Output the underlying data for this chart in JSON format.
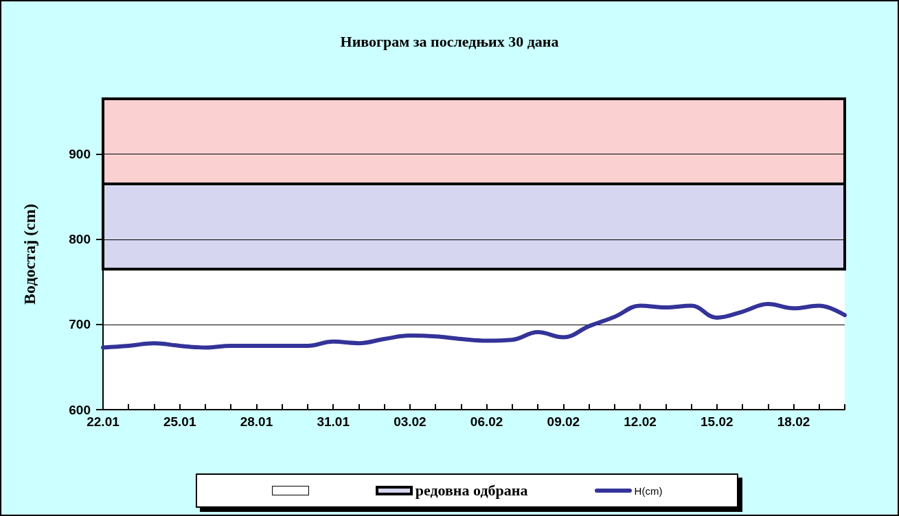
{
  "chart_data": {
    "type": "line",
    "title": "Нивограм за последњих 30 дана",
    "ylabel": "Водостај (cm)",
    "categories": [
      "22.01",
      null,
      null,
      "25.01",
      null,
      null,
      "28.01",
      null,
      null,
      "31.01",
      null,
      null,
      "03.02",
      null,
      null,
      "06.02",
      null,
      null,
      "09.02",
      null,
      null,
      "12.02",
      null,
      null,
      "15.02",
      null,
      null,
      "18.02",
      null,
      null
    ],
    "series": [
      {
        "name": "H(cm)",
        "color": "#333399",
        "values": [
          673,
          675,
          678,
          675,
          673,
          675,
          675,
          675,
          675,
          680,
          678,
          683,
          687,
          686,
          683,
          681,
          682,
          691,
          685,
          698,
          709,
          722,
          720,
          722,
          708,
          715,
          724,
          719,
          722,
          711
        ]
      }
    ],
    "ylim": [
      600,
      965
    ],
    "yticks": [
      600,
      700,
      800,
      900
    ],
    "grid": "y",
    "legend": "bottom",
    "line_style": "solid",
    "marker": "none",
    "bands": [
      {
        "axis": "y",
        "from": 600,
        "to": 765,
        "color": "#ffffff"
      },
      {
        "axis": "y",
        "from": 765,
        "to": 865,
        "label": "редовна одбрана",
        "color": "#d6d6f0"
      },
      {
        "axis": "y",
        "from": 865,
        "to": 965,
        "color": "#fbd0d0"
      }
    ]
  }
}
